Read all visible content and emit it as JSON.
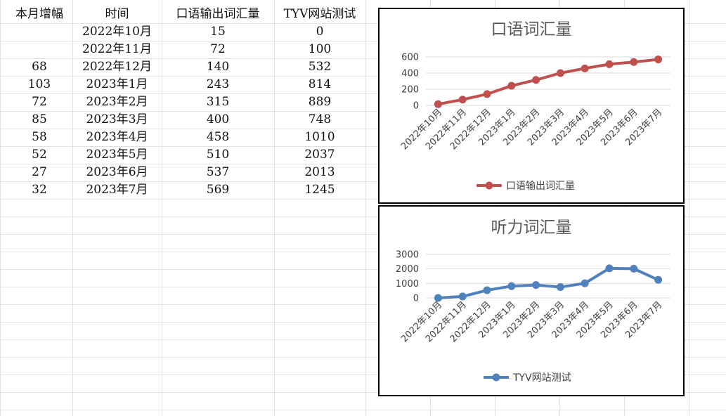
{
  "sheet": {
    "headers": [
      "本月增幅",
      "时间",
      "口语输出词汇量",
      "TYV网站测试"
    ],
    "rows": [
      [
        "",
        "2022年10月",
        "15",
        "0"
      ],
      [
        "",
        "2022年11月",
        "72",
        "100"
      ],
      [
        "68",
        "2022年12月",
        "140",
        "532"
      ],
      [
        "103",
        "2023年1月",
        "243",
        "814"
      ],
      [
        "72",
        "2023年2月",
        "315",
        "889"
      ],
      [
        "85",
        "2023年3月",
        "400",
        "748"
      ],
      [
        "58",
        "2023年4月",
        "458",
        "1010"
      ],
      [
        "52",
        "2023年5月",
        "510",
        "2037"
      ],
      [
        "27",
        "2023年6月",
        "537",
        "2013"
      ],
      [
        "32",
        "2023年7月",
        "569",
        "1245"
      ]
    ]
  },
  "chart_data": [
    {
      "type": "line",
      "title": "口语词汇量",
      "categories": [
        "2022年10月",
        "2022年11月",
        "2022年12月",
        "2023年1月",
        "2023年2月",
        "2023年3月",
        "2023年4月",
        "2023年5月",
        "2023年6月",
        "2023年7月"
      ],
      "series": [
        {
          "name": "口语输出词汇量",
          "values": [
            15,
            72,
            140,
            243,
            315,
            400,
            458,
            510,
            537,
            569
          ],
          "color": "#c0504d"
        }
      ],
      "yticks": [
        0,
        200,
        400,
        600
      ],
      "ylim": [
        0,
        600
      ],
      "grid": true,
      "legend": "bottom"
    },
    {
      "type": "line",
      "title": "听力词汇量",
      "categories": [
        "2022年10月",
        "2022年11月",
        "2022年12月",
        "2023年1月",
        "2023年2月",
        "2023年3月",
        "2023年4月",
        "2023年5月",
        "2023年6月",
        "2023年7月"
      ],
      "series": [
        {
          "name": "TYV网站测试",
          "values": [
            0,
            100,
            532,
            814,
            889,
            748,
            1010,
            2037,
            2013,
            1245
          ],
          "color": "#4f81bd"
        }
      ],
      "yticks": [
        0,
        1000,
        2000,
        3000
      ],
      "ylim": [
        0,
        3000
      ],
      "grid": true,
      "legend": "bottom"
    }
  ]
}
